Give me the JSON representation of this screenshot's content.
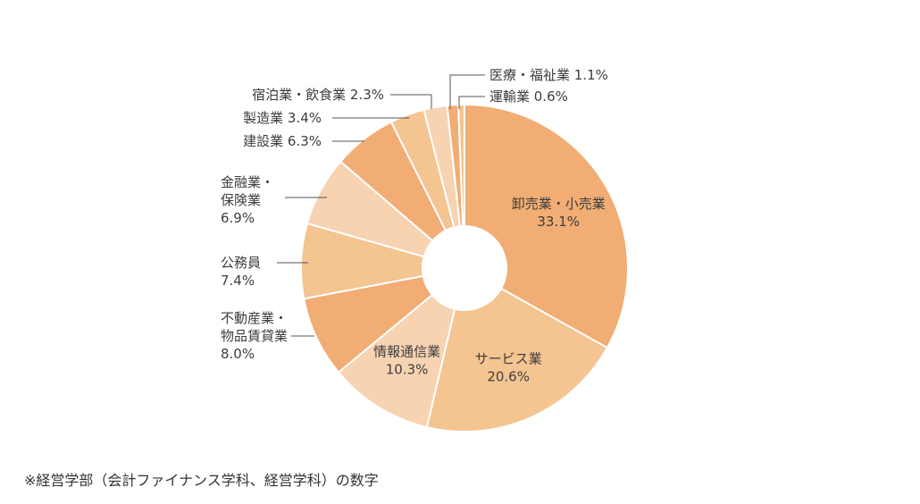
{
  "chart_data": {
    "type": "pie",
    "donut": true,
    "title": "",
    "slices": [
      {
        "label": "卸売業・小売業",
        "lines": [
          "卸売業・小売業",
          "33.1%"
        ],
        "value": 33.1,
        "color": "#f1ad74"
      },
      {
        "label": "サービス業",
        "lines": [
          "サービス業",
          "20.6%"
        ],
        "value": 20.6,
        "color": "#f4c491"
      },
      {
        "label": "情報通信業",
        "lines": [
          "情報通信業",
          "10.3%"
        ],
        "value": 10.3,
        "color": "#f7d3b1"
      },
      {
        "label": "不動産業・物品賃貸業",
        "lines": [
          "不動産業・",
          "物品賃貸業",
          "8.0%"
        ],
        "value": 8.0,
        "color": "#f1ad74"
      },
      {
        "label": "公務員",
        "lines": [
          "公務員",
          "7.4%"
        ],
        "value": 7.4,
        "color": "#f4c491"
      },
      {
        "label": "金融業・保険業",
        "lines": [
          "金融業・",
          "保険業",
          "6.9%"
        ],
        "value": 6.9,
        "color": "#f7d3b1"
      },
      {
        "label": "建設業",
        "lines": [
          "建設業 6.3%"
        ],
        "value": 6.3,
        "color": "#f1ad74"
      },
      {
        "label": "製造業",
        "lines": [
          "製造業 3.4%"
        ],
        "value": 3.4,
        "color": "#f4c491"
      },
      {
        "label": "宿泊業・飲食業",
        "lines": [
          "宿泊業・飲食業 2.3%"
        ],
        "value": 2.3,
        "color": "#f7d3b1"
      },
      {
        "label": "医療・福祉業",
        "lines": [
          "医療・福祉業 1.1%"
        ],
        "value": 1.1,
        "color": "#f1ad74"
      },
      {
        "label": "運輸業",
        "lines": [
          "運輸業 0.6%"
        ],
        "value": 0.6,
        "color": "#f4c491"
      }
    ]
  },
  "footnote": "※経営学部（会計ファイナンス学科、経営学科）の数字"
}
